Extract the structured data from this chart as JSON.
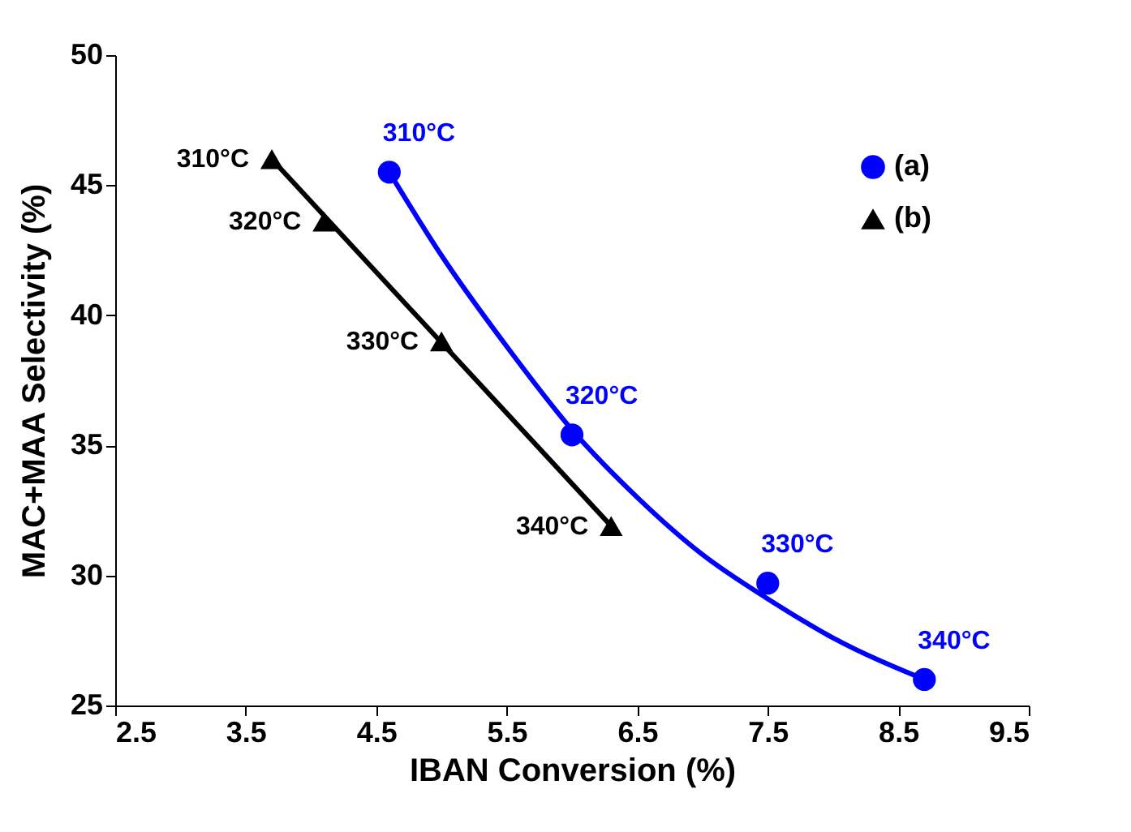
{
  "chart_data": {
    "type": "scatter",
    "xlabel": "IBAN Conversion (%)",
    "ylabel": "MAC+MAA Selectivity (%)",
    "xlim": [
      2.5,
      9.5
    ],
    "xticks": [
      2.5,
      3.5,
      4.5,
      5.5,
      6.5,
      7.5,
      8.5,
      9.5
    ],
    "ylim": [
      25,
      50
    ],
    "yticks": [
      25,
      30,
      35,
      40,
      45,
      50
    ],
    "grid": false,
    "legend": "top right",
    "series": [
      {
        "name": "(a)",
        "marker": "circle",
        "color": "#0000ff",
        "x": [
          4.6,
          6.0,
          7.5,
          8.7
        ],
        "values": [
          45.5,
          35.4,
          29.7,
          26.0
        ]
      },
      {
        "name": "(b)",
        "marker": "triangle",
        "color": "#000000",
        "x": [
          3.7,
          4.1,
          5.0,
          6.3
        ],
        "values": [
          46.0,
          43.6,
          39.0,
          31.9
        ]
      },
      {
        "type": "line",
        "marker": "none",
        "color": "#0000ff",
        "x": [
          4.6,
          5.0,
          5.5,
          6.0,
          6.5,
          7.0,
          7.5,
          8.0,
          8.7
        ],
        "values": [
          45.5,
          42.3,
          38.8,
          35.6,
          33.0,
          30.8,
          29.1,
          27.6,
          26.0
        ]
      },
      {
        "type": "line",
        "marker": "none",
        "color": "#000000",
        "x": [
          3.7,
          6.3
        ],
        "values": [
          46.0,
          31.9
        ]
      }
    ],
    "annotations": [
      {
        "text": "310°C",
        "x": 4.6,
        "y": 45.5
      },
      {
        "text": "320°C",
        "x": 6.0,
        "y": 35.4
      },
      {
        "text": "330°C",
        "x": 7.5,
        "y": 29.7
      },
      {
        "text": "340°C",
        "x": 8.7,
        "y": 26.0
      },
      {
        "text": "310°C",
        "x": 3.7,
        "y": 46.0
      },
      {
        "text": "320°C",
        "x": 4.1,
        "y": 43.6
      },
      {
        "text": "330°C",
        "x": 5.0,
        "y": 39.0
      },
      {
        "text": "340°C",
        "x": 6.3,
        "y": 31.9
      }
    ]
  }
}
